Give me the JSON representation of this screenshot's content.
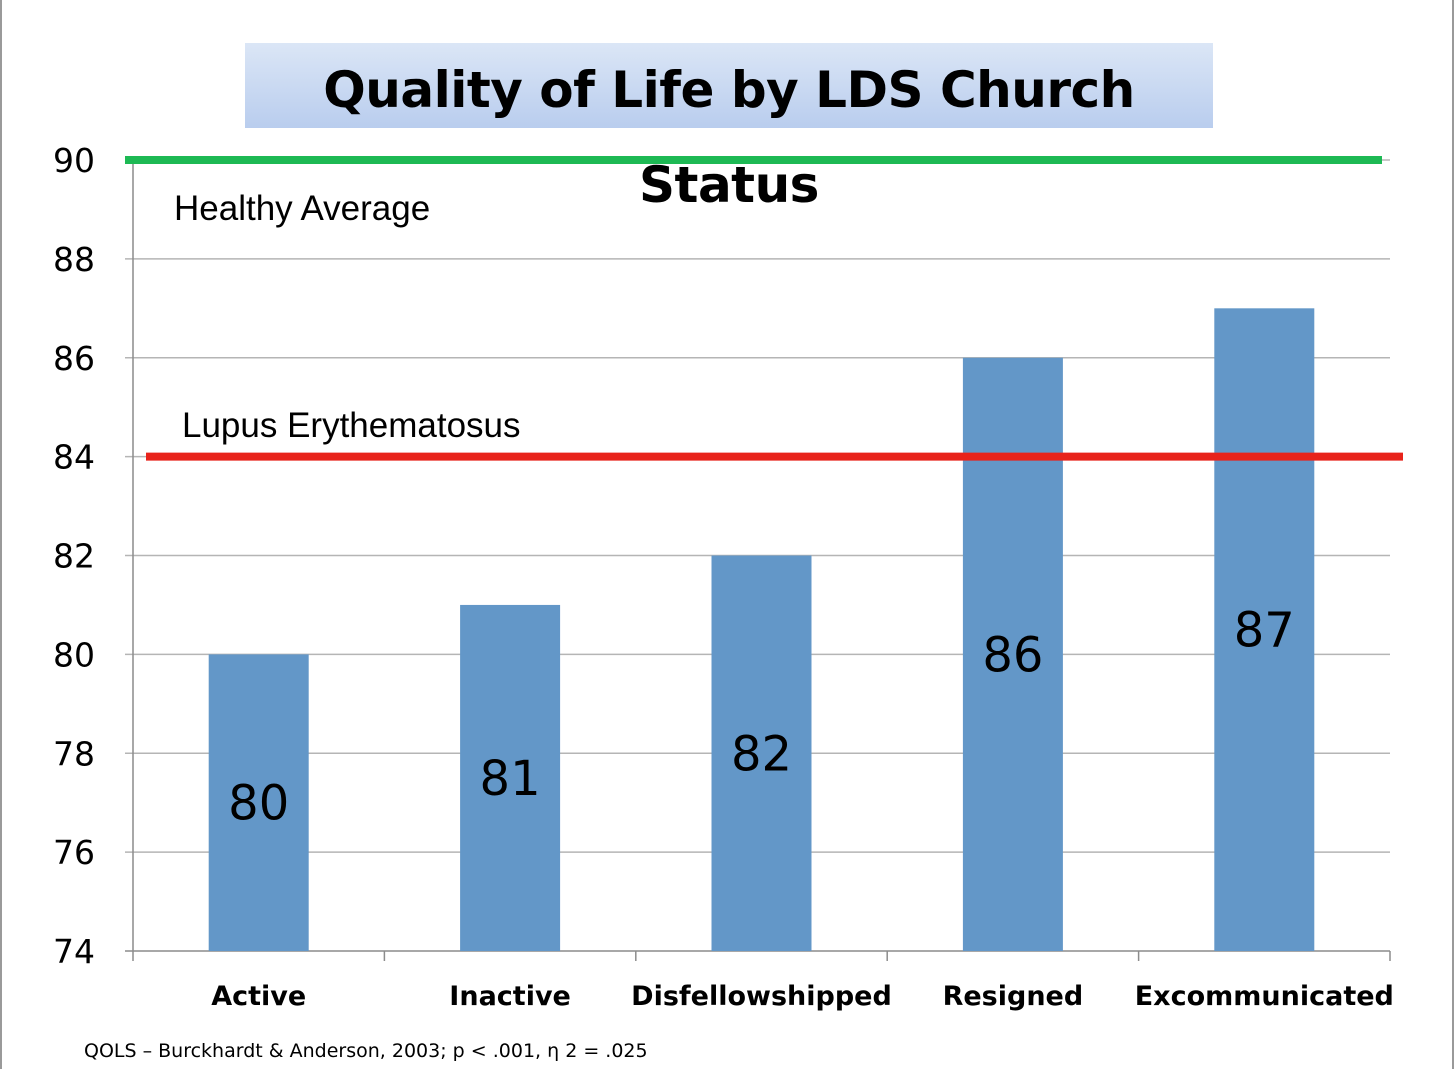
{
  "title": "Quality of Life by LDS Church Status",
  "source_note": "QOLS – Burckhardt & Anderson, 2003; p < .001, η 2 = .025",
  "chart_data": {
    "type": "bar",
    "categories": [
      "Active",
      "Inactive",
      "Disfellowshipped",
      "Resigned",
      "Excommunicated"
    ],
    "values": [
      80,
      81,
      82,
      86,
      87
    ],
    "value_labels": [
      "80",
      "81",
      "82",
      "86",
      "87"
    ],
    "ylim": [
      74,
      90
    ],
    "yticks": [
      74,
      76,
      78,
      80,
      82,
      84,
      86,
      88,
      90
    ],
    "ytick_labels": [
      "74",
      "76",
      "78",
      "80",
      "82",
      "84",
      "86",
      "88",
      "90"
    ],
    "grid": true,
    "reference_lines": [
      {
        "label": "Healthy Average",
        "value": 90,
        "color": "#1db954"
      },
      {
        "label": "Lupus Erythematosus",
        "value": 84,
        "color": "#e8231b"
      }
    ],
    "bar_color": "#6397c8"
  }
}
